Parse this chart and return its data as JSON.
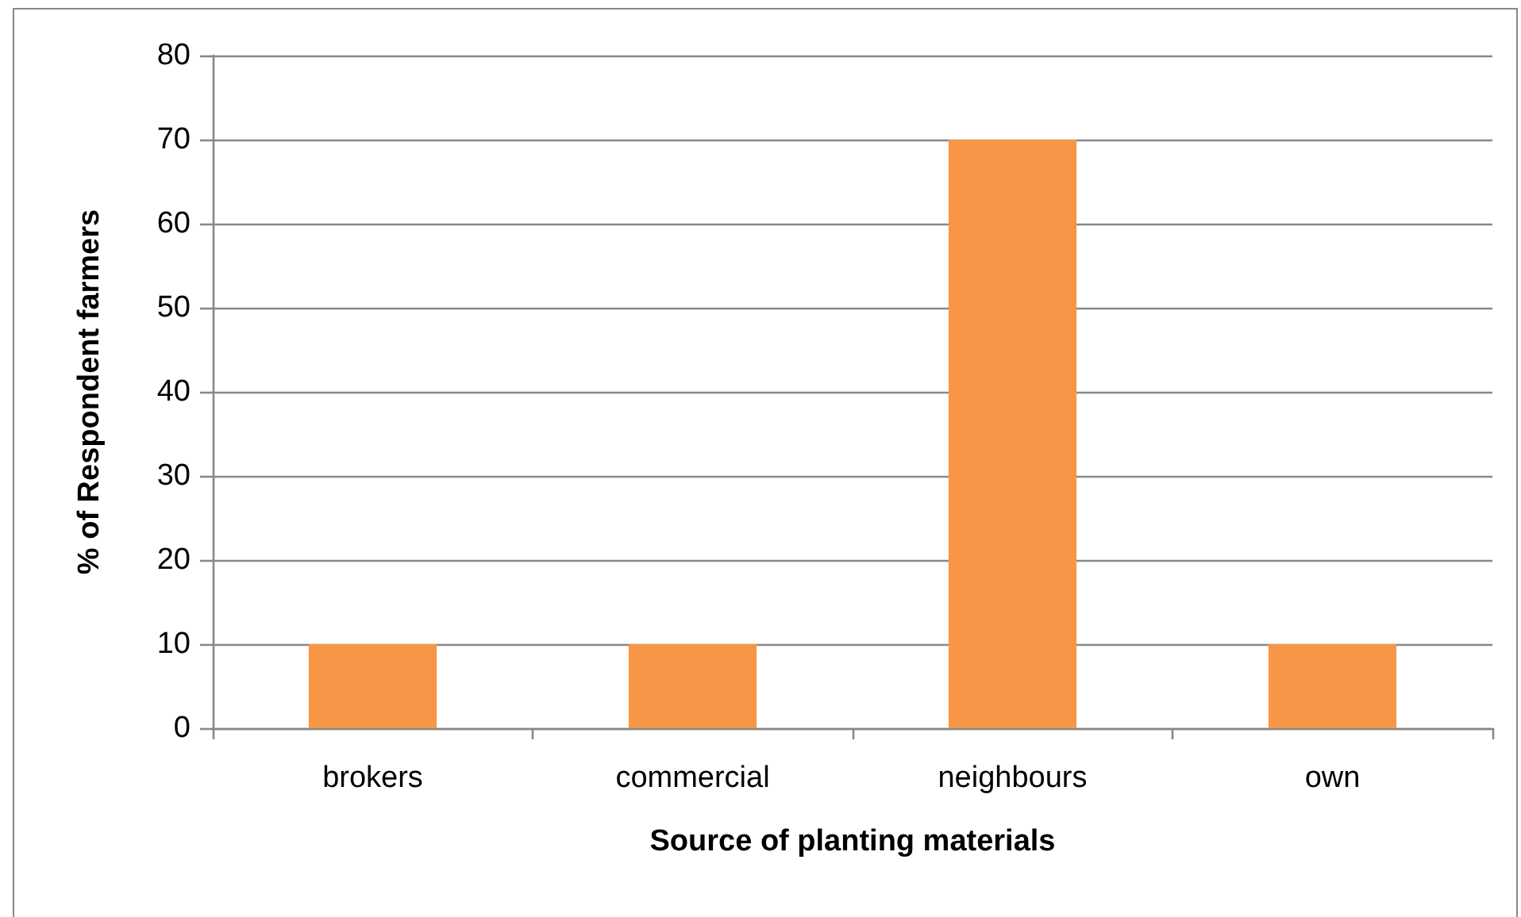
{
  "chart_data": {
    "type": "bar",
    "xlabel": "Source of planting materials",
    "ylabel": "% of Respondent farmers",
    "categories": [
      "brokers",
      "commercial",
      "neighbours",
      "own"
    ],
    "values": [
      10,
      10,
      70,
      10
    ],
    "color": "#f79646",
    "ylim": [
      0,
      80
    ],
    "yticks": [
      0,
      10,
      20,
      30,
      40,
      50,
      60,
      70,
      80
    ],
    "grid": "y"
  }
}
